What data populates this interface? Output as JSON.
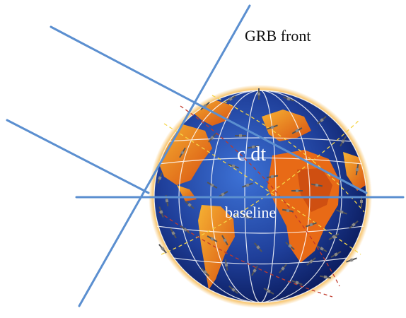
{
  "labels": {
    "grb_front": "GRB front",
    "c_dt": "c dt",
    "baseline": "baseline"
  },
  "colors": {
    "line": "#5b8fd0",
    "ocean_center": "#2f5fc0",
    "ocean_edge": "#0a1a5a",
    "land": "#f0a020",
    "land_dark": "#d85010",
    "rim": "#f7c36a",
    "orbit_grid": "#ffffff",
    "orbit_dashed_red": "#c0392b",
    "orbit_dashed_yellow": "#f5d547",
    "satellite": "#777777"
  },
  "icons": [
    "earth-globe-icon",
    "satellite-icon"
  ]
}
